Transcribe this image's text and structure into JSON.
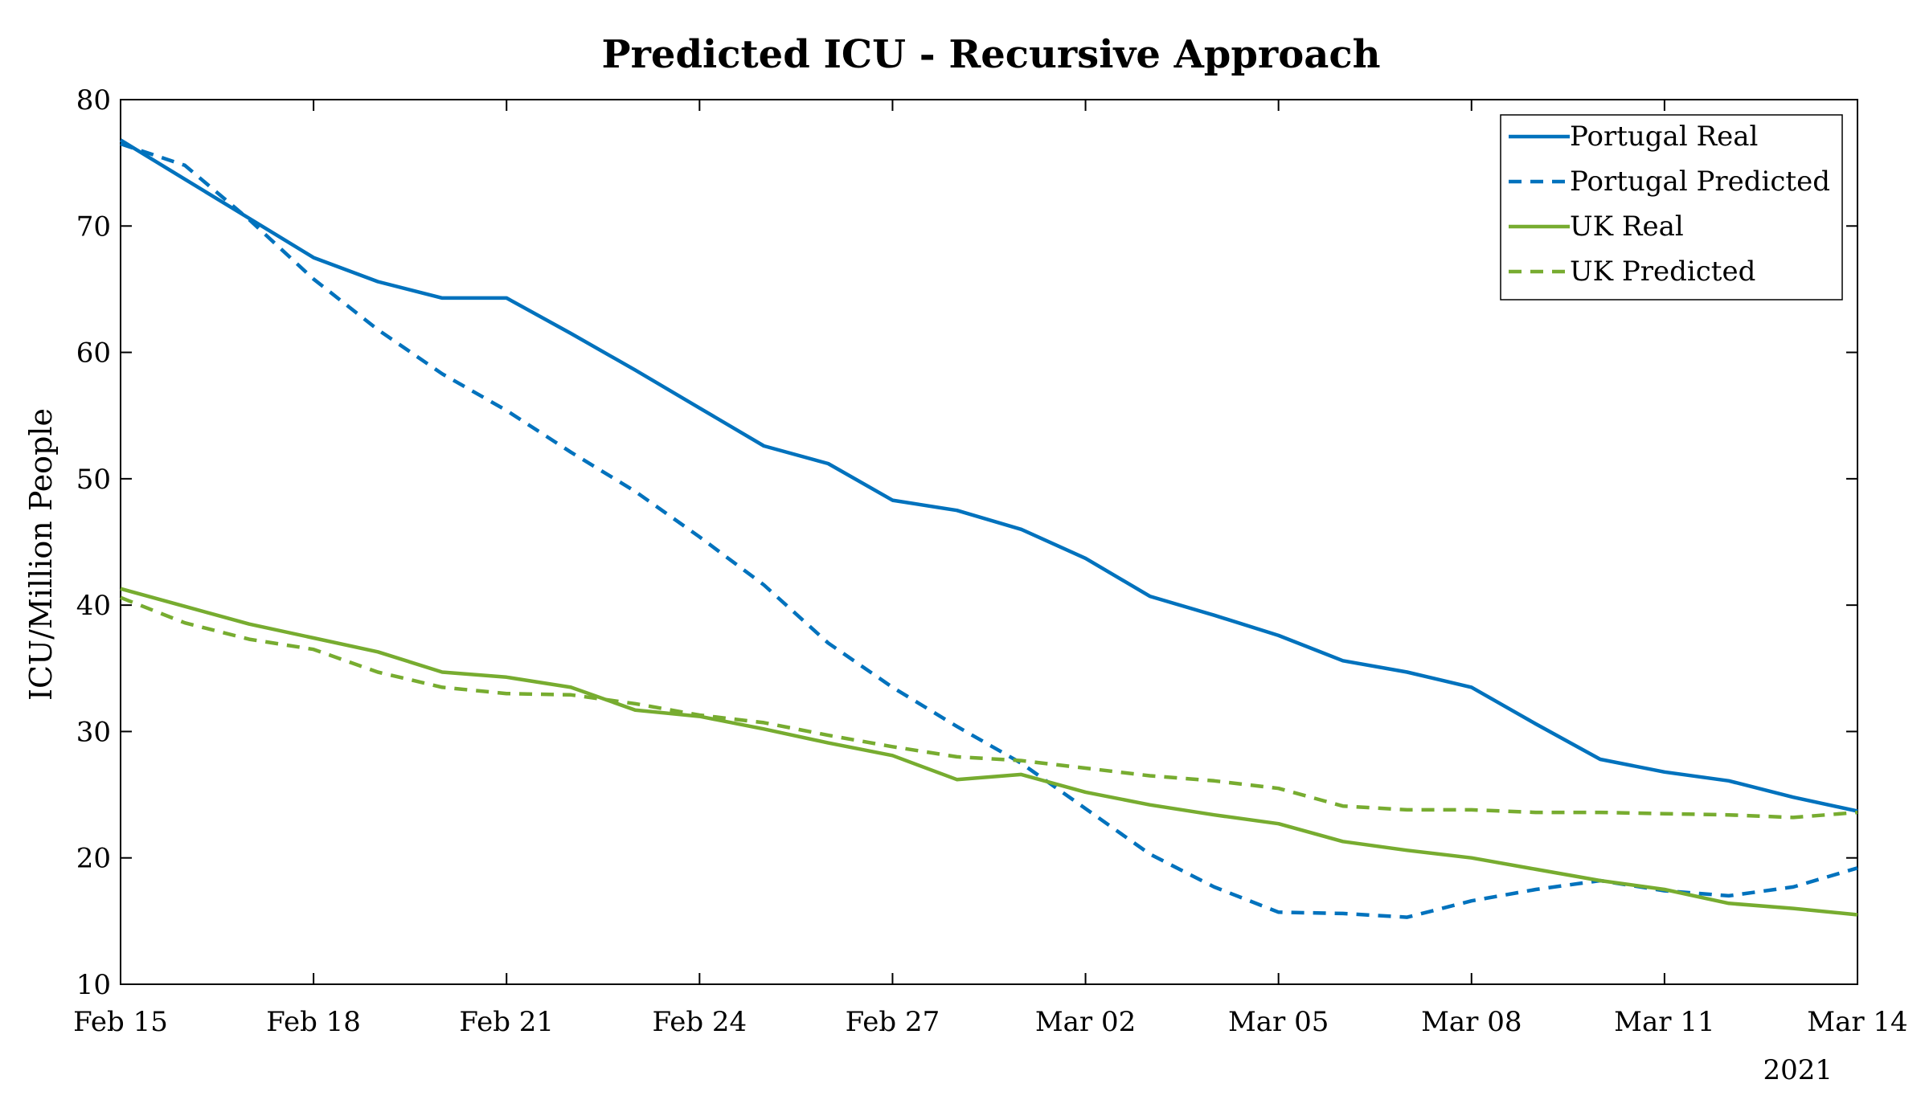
{
  "chart_data": {
    "type": "line",
    "title": "Predicted ICU - Recursive Approach",
    "xlabel": "",
    "ylabel": "ICU/Million People",
    "ylim": [
      10,
      80
    ],
    "yticks": [
      10,
      20,
      30,
      40,
      50,
      60,
      70,
      80
    ],
    "x_start": "2021-02-15",
    "x_end": "2021-03-14",
    "xticks": [
      {
        "date": "2021-02-15",
        "label": "Feb 15"
      },
      {
        "date": "2021-02-18",
        "label": "Feb 18"
      },
      {
        "date": "2021-02-21",
        "label": "Feb 21"
      },
      {
        "date": "2021-02-24",
        "label": "Feb 24"
      },
      {
        "date": "2021-02-27",
        "label": "Feb 27"
      },
      {
        "date": "2021-03-02",
        "label": "Mar 02"
      },
      {
        "date": "2021-03-05",
        "label": "Mar 05"
      },
      {
        "date": "2021-03-08",
        "label": "Mar 08"
      },
      {
        "date": "2021-03-11",
        "label": "Mar 11"
      },
      {
        "date": "2021-03-14",
        "label": "Mar 14"
      }
    ],
    "x_secondary_label": "2021",
    "legend_position": "top-right",
    "grid": false,
    "dates": [
      "2021-02-15",
      "2021-02-16",
      "2021-02-17",
      "2021-02-18",
      "2021-02-19",
      "2021-02-20",
      "2021-02-21",
      "2021-02-22",
      "2021-02-23",
      "2021-02-24",
      "2021-02-25",
      "2021-02-26",
      "2021-02-27",
      "2021-02-28",
      "2021-03-01",
      "2021-03-02",
      "2021-03-03",
      "2021-03-04",
      "2021-03-05",
      "2021-03-06",
      "2021-03-07",
      "2021-03-08",
      "2021-03-09",
      "2021-03-10",
      "2021-03-11",
      "2021-03-12",
      "2021-03-13",
      "2021-03-14"
    ],
    "series": [
      {
        "name": "Portugal Real",
        "color": "#0072BD",
        "style": "solid",
        "values": [
          76.8,
          73.7,
          70.6,
          67.5,
          65.6,
          64.3,
          64.3,
          61.5,
          58.6,
          55.6,
          52.6,
          51.2,
          48.3,
          47.5,
          46.0,
          43.7,
          40.7,
          39.2,
          37.6,
          35.6,
          34.7,
          33.5,
          30.6,
          27.8,
          26.8,
          26.1,
          24.8,
          23.7
        ]
      },
      {
        "name": "Portugal Predicted",
        "color": "#0072BD",
        "style": "dashed",
        "values": [
          76.5,
          74.8,
          70.5,
          65.8,
          61.8,
          58.3,
          55.4,
          52.1,
          49.0,
          45.4,
          41.6,
          37.0,
          33.5,
          30.4,
          27.5,
          23.9,
          20.3,
          17.7,
          15.7,
          15.6,
          15.3,
          16.6,
          17.5,
          18.2,
          17.4,
          17.0,
          17.7,
          19.2
        ]
      },
      {
        "name": "UK Real",
        "color": "#77AC30",
        "style": "solid",
        "values": [
          41.3,
          39.9,
          38.5,
          37.4,
          36.3,
          34.7,
          34.3,
          33.5,
          31.7,
          31.2,
          30.2,
          29.1,
          28.1,
          26.2,
          26.6,
          25.2,
          24.2,
          23.4,
          22.7,
          21.3,
          20.6,
          20.0,
          19.1,
          18.2,
          17.5,
          16.4,
          16.0,
          15.5
        ]
      },
      {
        "name": "UK Predicted",
        "color": "#77AC30",
        "style": "dashed",
        "values": [
          40.6,
          38.6,
          37.3,
          36.5,
          34.7,
          33.5,
          33.0,
          32.9,
          32.2,
          31.3,
          30.7,
          29.7,
          28.8,
          28.0,
          27.7,
          27.1,
          26.5,
          26.1,
          25.5,
          24.1,
          23.8,
          23.8,
          23.6,
          23.6,
          23.5,
          23.4,
          23.2,
          23.6
        ]
      }
    ]
  }
}
